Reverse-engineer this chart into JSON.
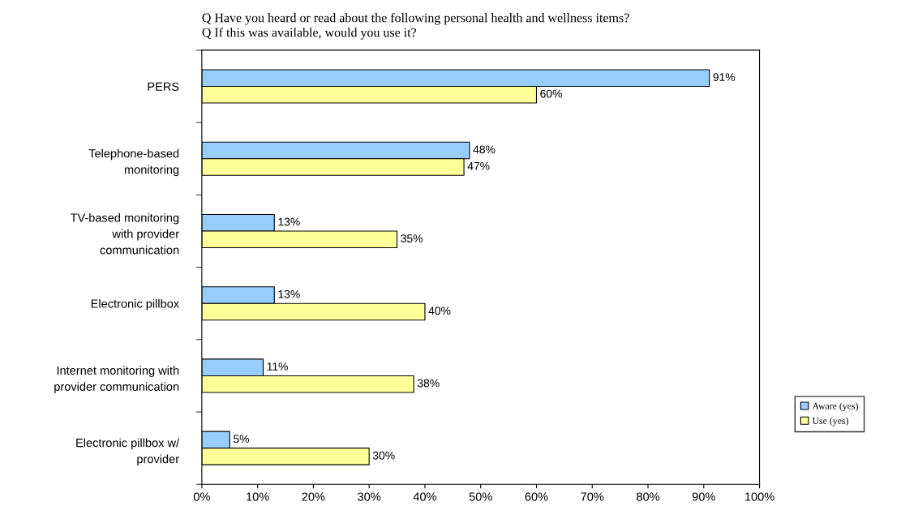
{
  "chart_data": {
    "type": "bar",
    "orientation": "horizontal",
    "title": "Q Have you heard or read about the following personal health and wellness items?\nQ If this was available, would you use it?",
    "categories": [
      "PERS",
      "Telephone-based\nmonitoring",
      "TV-based monitoring\nwith provider\ncommunication",
      "Electronic pillbox",
      "Internet monitoring with\nprovider communication",
      "Electronic pillbox w/\nprovider"
    ],
    "series": [
      {
        "name": "Aware (yes)",
        "color": "#99ccff",
        "values": [
          91,
          48,
          13,
          13,
          11,
          5
        ],
        "value_labels": [
          "91%",
          "48%",
          "13%",
          "13%",
          "11%",
          "5%"
        ]
      },
      {
        "name": "Use (yes)",
        "color": "#ffff99",
        "values": [
          60,
          47,
          35,
          40,
          38,
          30
        ],
        "value_labels": [
          "60%",
          "47%",
          "35%",
          "40%",
          "38%",
          "30%"
        ]
      }
    ],
    "xlim": [
      0,
      100
    ],
    "xticks": [
      {
        "value": 0,
        "label": "0%"
      },
      {
        "value": 10,
        "label": "10%"
      },
      {
        "value": 20,
        "label": "20%"
      },
      {
        "value": 30,
        "label": "30%"
      },
      {
        "value": 40,
        "label": "40%"
      },
      {
        "value": 50,
        "label": "50%"
      },
      {
        "value": 60,
        "label": "60%"
      },
      {
        "value": 70,
        "label": "70%"
      },
      {
        "value": 80,
        "label": "80%"
      },
      {
        "value": 90,
        "label": "90%"
      },
      {
        "value": 100,
        "label": "100%"
      }
    ],
    "grid": false,
    "legend": "bottom right"
  }
}
